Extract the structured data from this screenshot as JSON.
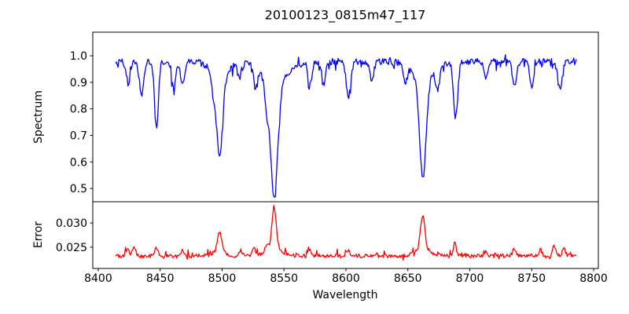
{
  "chart_data": {
    "type": "line",
    "title": "20100123_0815m47_117",
    "xlabel": "Wavelength",
    "xlim": [
      8395.6,
      8803.8
    ],
    "x_data_range": [
      8414,
      8786
    ],
    "xticks": [
      8400,
      8450,
      8500,
      8550,
      8600,
      8650,
      8700,
      8750,
      8800
    ],
    "xtick_labels": [
      "8400",
      "8450",
      "8500",
      "8550",
      "8600",
      "8650",
      "8700",
      "8750",
      "8800"
    ],
    "n_points": 560,
    "noise_seed": 20100123,
    "grid": false,
    "legend": "none",
    "panels": [
      {
        "name": "spectrum",
        "ylabel": "Spectrum",
        "color": "#0000ff",
        "ylim": [
          0.45,
          1.089
        ],
        "yticks": [
          1.0,
          0.9,
          0.8,
          0.7,
          0.6,
          0.5
        ],
        "ytick_labels": [
          "1.0",
          "0.9",
          "0.8",
          "0.7",
          "0.6",
          "0.5"
        ],
        "continuum": 0.978,
        "noise_amp": 0.012,
        "spike_prob": 0.15,
        "spike_amp": 0.026,
        "spike_bias": -0.25,
        "absorption_lines": [
          {
            "center": 8424.0,
            "depth": 0.09,
            "width": 1.5
          },
          {
            "center": 8435.0,
            "depth": 0.13,
            "width": 1.7
          },
          {
            "center": 8447.0,
            "depth": 0.25,
            "width": 1.6
          },
          {
            "center": 8461.0,
            "depth": 0.1,
            "width": 1.5
          },
          {
            "center": 8468.0,
            "depth": 0.09,
            "width": 1.5
          },
          {
            "center": 8493.0,
            "depth": 0.07,
            "width": 1.5
          },
          {
            "center": 8498.0,
            "depth": 0.3,
            "width": 2.4,
            "wing_depth": 0.055,
            "wing_width": 7
          },
          {
            "center": 8514.0,
            "depth": 0.06,
            "width": 1.5
          },
          {
            "center": 8527.0,
            "depth": 0.08,
            "width": 1.5
          },
          {
            "center": 8536.0,
            "depth": 0.1,
            "width": 1.6
          },
          {
            "center": 8542.1,
            "depth": 0.42,
            "width": 2.8,
            "wing_depth": 0.09,
            "wing_width": 9
          },
          {
            "center": 8571.0,
            "depth": 0.09,
            "width": 1.6
          },
          {
            "center": 8582.0,
            "depth": 0.08,
            "width": 1.5
          },
          {
            "center": 8602.0,
            "depth": 0.13,
            "width": 1.8
          },
          {
            "center": 8621.0,
            "depth": 0.07,
            "width": 1.5
          },
          {
            "center": 8648.0,
            "depth": 0.06,
            "width": 1.5
          },
          {
            "center": 8662.1,
            "depth": 0.36,
            "width": 2.6,
            "wing_depth": 0.073,
            "wing_width": 8
          },
          {
            "center": 8674.0,
            "depth": 0.08,
            "width": 1.5
          },
          {
            "center": 8688.6,
            "depth": 0.21,
            "width": 1.7
          },
          {
            "center": 8713.0,
            "depth": 0.06,
            "width": 1.5
          },
          {
            "center": 8736.0,
            "depth": 0.09,
            "width": 1.6
          },
          {
            "center": 8750.0,
            "depth": 0.09,
            "width": 1.5
          },
          {
            "center": 8773.0,
            "depth": 0.11,
            "width": 1.6
          }
        ]
      },
      {
        "name": "error",
        "ylabel": "Error",
        "color": "#ff0000",
        "ylim": [
          0.0206,
          0.0344
        ],
        "yticks": [
          0.03,
          0.025
        ],
        "ytick_labels": [
          "0.030",
          "0.025"
        ],
        "baseline": 0.0232,
        "noise_amp": 0.0004,
        "spike_prob": 0.12,
        "spike_amp": 0.0009,
        "spike_bias": 0.3,
        "peaks": [
          {
            "center": 8424.0,
            "height": 0.0012,
            "width": 1.4
          },
          {
            "center": 8429.0,
            "height": 0.0021,
            "width": 1.2
          },
          {
            "center": 8447.0,
            "height": 0.0017,
            "width": 1.3
          },
          {
            "center": 8468.0,
            "height": 0.0011,
            "width": 1.3
          },
          {
            "center": 8498.0,
            "height": 0.004,
            "width": 1.7,
            "wing_height": 0.0009,
            "wing_width": 5
          },
          {
            "center": 8515.0,
            "height": 0.0011,
            "width": 1.3
          },
          {
            "center": 8526.0,
            "height": 0.0017,
            "width": 1.4
          },
          {
            "center": 8536.0,
            "height": 0.0012,
            "width": 1.3
          },
          {
            "center": 8542.0,
            "height": 0.0085,
            "width": 1.7,
            "wing_height": 0.0017,
            "wing_width": 6
          },
          {
            "center": 8571.0,
            "height": 0.0013,
            "width": 1.3
          },
          {
            "center": 8602.0,
            "height": 0.0011,
            "width": 1.4
          },
          {
            "center": 8662.0,
            "height": 0.007,
            "width": 1.7,
            "wing_height": 0.0015,
            "wing_width": 6
          },
          {
            "center": 8688.0,
            "height": 0.0025,
            "width": 1.2
          },
          {
            "center": 8713.0,
            "height": 0.001,
            "width": 1.2
          },
          {
            "center": 8736.0,
            "height": 0.0015,
            "width": 1.3
          },
          {
            "center": 8757.0,
            "height": 0.0013,
            "width": 1.2
          },
          {
            "center": 8768.0,
            "height": 0.0019,
            "width": 1.3
          },
          {
            "center": 8776.0,
            "height": 0.0015,
            "width": 1.3
          }
        ]
      }
    ]
  }
}
